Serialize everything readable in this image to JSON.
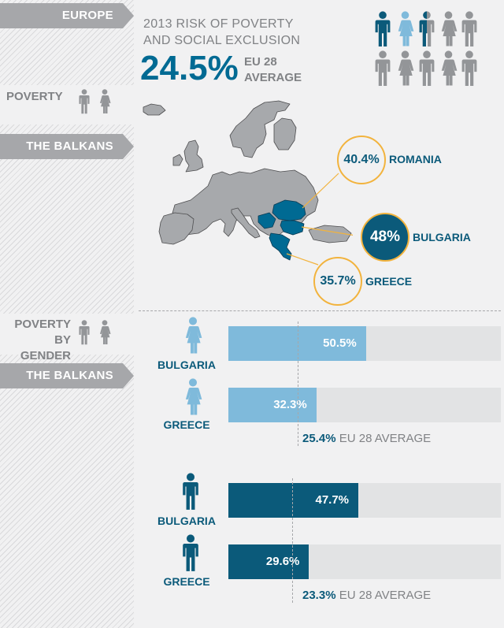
{
  "sidebar": {
    "europe": "EUROPE",
    "poverty": "POVERTY",
    "balkans_1": "THE BALKANS",
    "poverty_by_gender_1": "POVERTY",
    "poverty_by_gender_2": "BY GENDER",
    "balkans_2": "THE BALKANS"
  },
  "header": {
    "title_line1": "2013 RISK OF POVERTY",
    "title_line2": "AND SOCIAL EXCLUSION",
    "eu_pct": "24.5%",
    "eu_label1": "EU 28",
    "eu_label2": "AVERAGE"
  },
  "map": {
    "romania_pct": "40.4%",
    "romania": "ROMANIA",
    "bulgaria_pct": "48%",
    "bulgaria": "BULGARIA",
    "greece_pct": "35.7%",
    "greece": "GREECE"
  },
  "colors": {
    "dark_blue": "#0b5a7a",
    "light_blue": "#7fbadb",
    "gray": "#939598",
    "gold": "#f2b33d"
  },
  "chart_data": [
    {
      "type": "bar",
      "categories": [
        "BULGARIA",
        "GREECE"
      ],
      "values": [
        50.5,
        32.3
      ],
      "value_labels": [
        "50.5%",
        "32.3%"
      ],
      "reference_value": 25.4,
      "reference_label_value": "25.4%",
      "reference_label": "EU 28 AVERAGE",
      "ylim": [
        0,
        100
      ]
    },
    {
      "type": "bar",
      "categories": [
        "BULGARIA",
        "GREECE"
      ],
      "values": [
        47.7,
        29.6
      ],
      "value_labels": [
        "47.7%",
        "29.6%"
      ],
      "reference_value": 23.3,
      "reference_label_value": "23.3%",
      "reference_label": "EU 28 AVERAGE",
      "ylim": [
        0,
        100
      ]
    }
  ]
}
